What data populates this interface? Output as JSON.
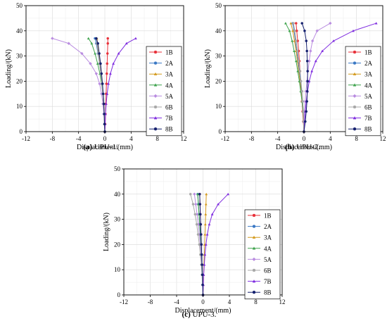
{
  "chart_data": [
    {
      "type": "line",
      "caption_letter": "(a)",
      "caption_text": "UPU-1.",
      "xlabel": "Displacement/(mm)",
      "ylabel": "Loading/(kN)",
      "xlim": [
        -12,
        12
      ],
      "ylim": [
        0,
        50
      ],
      "xticks": [
        -12,
        -8,
        -4,
        0,
        4,
        8,
        12
      ],
      "yticks": [
        0,
        10,
        20,
        30,
        40,
        50
      ],
      "grid": true,
      "legend_position": "right",
      "series": [
        {
          "name": "1B",
          "color": "#e8313a",
          "marker": "circle",
          "x": [
            0,
            0.05,
            0.1,
            0.15,
            0.2,
            0.25,
            0.3,
            0.35,
            0.4,
            0.45,
            0.45
          ],
          "y": [
            0,
            3,
            7,
            11,
            15,
            19,
            23,
            27,
            31,
            35,
            37
          ]
        },
        {
          "name": "2A",
          "color": "#3a78c4",
          "marker": "circle",
          "x": [
            0,
            -0.05,
            -0.1,
            -0.2,
            -0.3,
            -0.45,
            -0.6,
            -0.8,
            -1.05,
            -1.3,
            -1.5
          ],
          "y": [
            0,
            3,
            7,
            11,
            15,
            19,
            23,
            27,
            31,
            35,
            37
          ]
        },
        {
          "name": "3A",
          "color": "#d49a1e",
          "marker": "triangle",
          "x": [
            0,
            -0.05,
            -0.1,
            -0.15,
            -0.25,
            -0.4,
            -0.55,
            -0.7,
            -0.9,
            -1.1,
            -1.2
          ],
          "y": [
            0,
            3,
            7,
            11,
            15,
            19,
            23,
            27,
            31,
            35,
            37
          ]
        },
        {
          "name": "4A",
          "color": "#3fa34d",
          "marker": "triangle",
          "x": [
            0,
            -0.05,
            -0.1,
            -0.2,
            -0.3,
            -0.5,
            -0.75,
            -1.1,
            -1.5,
            -2.0,
            -2.5
          ],
          "y": [
            0,
            3,
            7,
            11,
            15,
            19,
            23,
            27,
            31,
            35,
            37
          ]
        },
        {
          "name": "5A",
          "color": "#b98ce0",
          "marker": "diamond",
          "x": [
            0,
            -0.05,
            -0.15,
            -0.3,
            -0.5,
            -0.8,
            -1.3,
            -2.2,
            -3.5,
            -5.5,
            -8.0
          ],
          "y": [
            0,
            3,
            7,
            11,
            15,
            19,
            23,
            27,
            31,
            35,
            37
          ]
        },
        {
          "name": "6B",
          "color": "#a8a8a8",
          "marker": "circle",
          "x": [
            0,
            -0.05,
            -0.1,
            -0.2,
            -0.3,
            -0.45,
            -0.6,
            -0.8,
            -1.0,
            -1.2,
            -1.3
          ],
          "y": [
            0,
            3,
            7,
            11,
            15,
            19,
            23,
            27,
            31,
            35,
            37
          ]
        },
        {
          "name": "7B",
          "color": "#7f2de0",
          "marker": "triangle",
          "x": [
            0,
            0.05,
            0.1,
            0.2,
            0.35,
            0.55,
            0.85,
            1.3,
            2.1,
            3.3,
            4.7
          ],
          "y": [
            0,
            3,
            7,
            11,
            15,
            19,
            23,
            27,
            31,
            35,
            37
          ]
        },
        {
          "name": "8B",
          "color": "#14206e",
          "marker": "circle",
          "x": [
            0,
            -0.05,
            -0.1,
            -0.15,
            -0.25,
            -0.35,
            -0.5,
            -0.65,
            -0.85,
            -1.05,
            -1.3
          ],
          "y": [
            0,
            3,
            7,
            11,
            15,
            19,
            23,
            27,
            31,
            35,
            37
          ]
        }
      ]
    },
    {
      "type": "line",
      "caption_letter": "(b)",
      "caption_text": "UPU-2.",
      "xlabel": "Displacement/(mm)",
      "ylabel": "Loading/(kN)",
      "xlim": [
        -12,
        12
      ],
      "ylim": [
        0,
        50
      ],
      "xticks": [
        -12,
        -8,
        -4,
        0,
        4,
        8,
        12
      ],
      "yticks": [
        0,
        10,
        20,
        30,
        40,
        50
      ],
      "grid": true,
      "legend_position": "right",
      "series": [
        {
          "name": "1B",
          "color": "#e8313a",
          "marker": "circle",
          "x": [
            0,
            -0.1,
            -0.2,
            -0.3,
            -0.4,
            -0.5,
            -0.6,
            -0.7,
            -0.8,
            -0.95,
            -1.1,
            -1.2
          ],
          "y": [
            0,
            4,
            8,
            12,
            16,
            20,
            24,
            28,
            32,
            36,
            40,
            43
          ]
        },
        {
          "name": "2A",
          "color": "#3a78c4",
          "marker": "circle",
          "x": [
            0,
            -0.05,
            -0.1,
            -0.2,
            -0.35,
            -0.5,
            -0.7,
            -0.9,
            -1.1,
            -1.3,
            -1.5,
            -1.7
          ],
          "y": [
            0,
            4,
            8,
            12,
            16,
            20,
            24,
            28,
            32,
            36,
            40,
            43
          ]
        },
        {
          "name": "3A",
          "color": "#d49a1e",
          "marker": "triangle",
          "x": [
            0,
            -0.05,
            -0.15,
            -0.3,
            -0.45,
            -0.6,
            -0.8,
            -1.0,
            -1.2,
            -1.45,
            -1.7,
            -2.0
          ],
          "y": [
            0,
            4,
            8,
            12,
            16,
            20,
            24,
            28,
            32,
            36,
            40,
            43
          ]
        },
        {
          "name": "4A",
          "color": "#3fa34d",
          "marker": "triangle",
          "x": [
            0,
            -0.05,
            -0.15,
            -0.3,
            -0.5,
            -0.7,
            -0.95,
            -1.2,
            -1.5,
            -1.8,
            -2.2,
            -2.8
          ],
          "y": [
            0,
            4,
            8,
            12,
            16,
            20,
            24,
            28,
            32,
            36,
            40,
            43
          ]
        },
        {
          "name": "5A",
          "color": "#b98ce0",
          "marker": "diamond",
          "x": [
            0,
            0.05,
            0.1,
            0.2,
            0.3,
            0.45,
            0.6,
            0.8,
            1.0,
            1.3,
            2.0,
            4.0
          ],
          "y": [
            0,
            4,
            8,
            12,
            16,
            20,
            24,
            28,
            32,
            36,
            40,
            43
          ]
        },
        {
          "name": "6B",
          "color": "#a8a8a8",
          "marker": "circle",
          "x": [
            0,
            -0.05,
            -0.1,
            -0.2,
            -0.3,
            -0.45,
            -0.6,
            -0.8,
            -1.0,
            -1.2,
            -1.4,
            -1.6
          ],
          "y": [
            0,
            4,
            8,
            12,
            16,
            20,
            24,
            28,
            32,
            36,
            40,
            43
          ]
        },
        {
          "name": "7B",
          "color": "#7f2de0",
          "marker": "triangle",
          "x": [
            0,
            0.1,
            0.2,
            0.35,
            0.55,
            0.8,
            1.2,
            1.8,
            2.8,
            4.5,
            7.5,
            11.0
          ],
          "y": [
            0,
            4,
            8,
            12,
            16,
            20,
            24,
            28,
            32,
            36,
            40,
            43
          ]
        },
        {
          "name": "8B",
          "color": "#14206e",
          "marker": "circle",
          "x": [
            0,
            0.2,
            0.35,
            0.45,
            0.5,
            0.55,
            0.55,
            0.5,
            0.45,
            0.35,
            0.1,
            -0.3
          ],
          "y": [
            0,
            4,
            8,
            12,
            16,
            20,
            24,
            28,
            32,
            36,
            40,
            43
          ]
        }
      ]
    },
    {
      "type": "line",
      "caption_letter": "(c)",
      "caption_text": "UPU-3.",
      "xlabel": "Displacement/(mm)",
      "ylabel": "Loading/(kN)",
      "xlim": [
        -12,
        12
      ],
      "ylim": [
        0,
        50
      ],
      "xticks": [
        -12,
        -8,
        -4,
        0,
        4,
        8,
        12
      ],
      "yticks": [
        0,
        10,
        20,
        30,
        40,
        50
      ],
      "grid": true,
      "legend_position": "right",
      "series": [
        {
          "name": "1B",
          "color": "#e8313a",
          "marker": "circle",
          "x": [
            0,
            -0.05,
            -0.1,
            -0.15,
            -0.2,
            -0.25,
            -0.3,
            -0.35,
            -0.4,
            -0.45,
            -0.5
          ],
          "y": [
            0,
            4,
            8,
            12,
            16,
            20,
            24,
            28,
            32,
            36,
            40
          ]
        },
        {
          "name": "2A",
          "color": "#3a78c4",
          "marker": "circle",
          "x": [
            0,
            -0.05,
            -0.1,
            -0.15,
            -0.2,
            -0.3,
            -0.4,
            -0.5,
            -0.6,
            -0.7,
            -0.8
          ],
          "y": [
            0,
            4,
            8,
            12,
            16,
            20,
            24,
            28,
            32,
            36,
            40
          ]
        },
        {
          "name": "3A",
          "color": "#d49a1e",
          "marker": "triangle",
          "x": [
            0,
            0.05,
            0.1,
            0.15,
            0.2,
            0.25,
            0.3,
            0.35,
            0.4,
            0.45,
            0.5
          ],
          "y": [
            0,
            4,
            8,
            12,
            16,
            20,
            24,
            28,
            32,
            36,
            40
          ]
        },
        {
          "name": "4A",
          "color": "#3fa34d",
          "marker": "triangle",
          "x": [
            0,
            -0.05,
            -0.1,
            -0.15,
            -0.2,
            -0.3,
            -0.4,
            -0.5,
            -0.6,
            -0.7,
            -0.8
          ],
          "y": [
            0,
            4,
            8,
            12,
            16,
            20,
            24,
            28,
            32,
            36,
            40
          ]
        },
        {
          "name": "5A",
          "color": "#b98ce0",
          "marker": "diamond",
          "x": [
            0,
            -0.05,
            -0.1,
            -0.2,
            -0.3,
            -0.4,
            -0.55,
            -0.7,
            -0.9,
            -1.1,
            -1.3
          ],
          "y": [
            0,
            4,
            8,
            12,
            16,
            20,
            24,
            28,
            32,
            36,
            40
          ]
        },
        {
          "name": "6B",
          "color": "#a8a8a8",
          "marker": "circle",
          "x": [
            0,
            -0.05,
            -0.15,
            -0.25,
            -0.4,
            -0.55,
            -0.75,
            -0.95,
            -1.2,
            -1.5,
            -1.9
          ],
          "y": [
            0,
            4,
            8,
            12,
            16,
            20,
            24,
            28,
            32,
            36,
            40
          ]
        },
        {
          "name": "7B",
          "color": "#7f2de0",
          "marker": "triangle",
          "x": [
            0,
            0.05,
            0.1,
            0.2,
            0.3,
            0.45,
            0.65,
            0.95,
            1.4,
            2.3,
            3.8
          ],
          "y": [
            0,
            4,
            8,
            12,
            16,
            20,
            24,
            28,
            32,
            36,
            40
          ]
        },
        {
          "name": "8B",
          "color": "#14206e",
          "marker": "circle",
          "x": [
            0,
            -0.05,
            -0.1,
            -0.15,
            -0.2,
            -0.25,
            -0.3,
            -0.35,
            -0.4,
            -0.45,
            -0.5
          ],
          "y": [
            0,
            4,
            8,
            12,
            16,
            20,
            24,
            28,
            32,
            36,
            40
          ]
        }
      ]
    }
  ]
}
